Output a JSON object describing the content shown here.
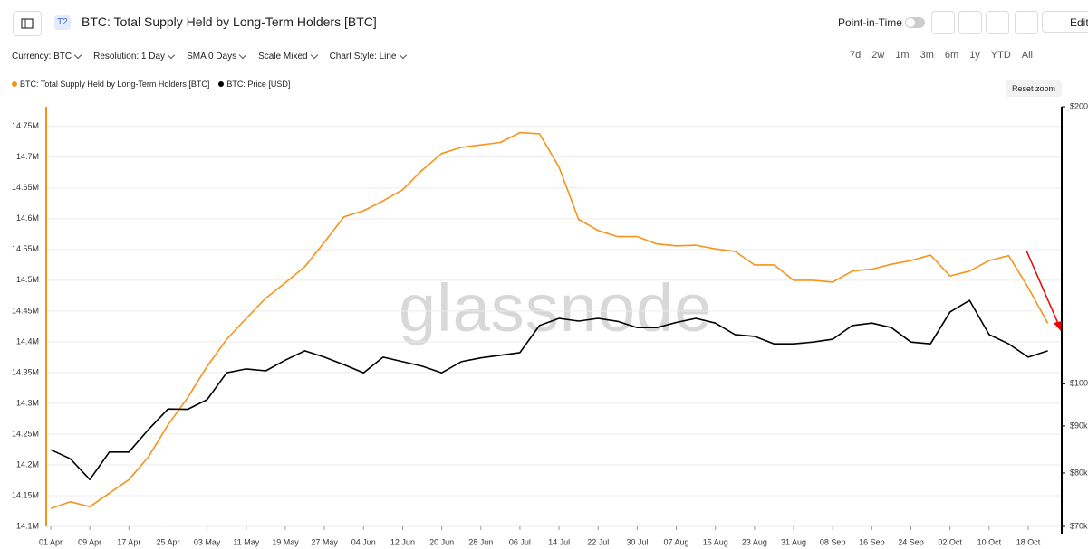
{
  "header": {
    "badge": "T2",
    "title": "BTC: Total Supply Held by Long-Term Holders [BTC]",
    "point_in_time": "Point-in-Time",
    "edit": "Edit"
  },
  "toolbar": {
    "dropdowns": [
      "Currency: BTC",
      "Resolution: 1 Day",
      "SMA 0 Days",
      "Scale Mixed",
      "Chart Style: Line"
    ],
    "ranges": [
      "7d",
      "2w",
      "1m",
      "3m",
      "6m",
      "1y",
      "YTD",
      "All"
    ],
    "reset_zoom": "Reset zoom"
  },
  "watermark": "glassnode",
  "chart_data": {
    "type": "line",
    "categories": [
      "01 Apr",
      null,
      "09 Apr",
      null,
      "17 Apr",
      null,
      "25 Apr",
      null,
      "03 May",
      null,
      "11 May",
      null,
      "19 May",
      null,
      "27 May",
      null,
      "04 Jun",
      null,
      "12 Jun",
      null,
      "20 Jun",
      null,
      "28 Jun",
      null,
      "06 Jul",
      null,
      "14 Jul",
      null,
      "22 Jul",
      null,
      "30 Jul",
      null,
      "07 Aug",
      null,
      "15 Aug",
      null,
      "23 Aug",
      null,
      "31 Aug",
      null,
      "08 Sep",
      null,
      "16 Sep",
      null,
      "24 Sep",
      null,
      "02 Oct",
      null,
      "10 Oct",
      null,
      "18 Oct",
      null
    ],
    "series": [
      {
        "name": "BTC: Total Supply Held by Long-Term Holders [BTC]",
        "color": "#f7931a",
        "axis": "y",
        "values": [
          14129000,
          14140000,
          14132000,
          14154000,
          14176000,
          14213000,
          14265000,
          14309000,
          14360000,
          14404000,
          14438000,
          14471000,
          14496000,
          14522000,
          14562000,
          14603000,
          14613000,
          14629000,
          14647000,
          14679000,
          14706000,
          14716000,
          14720000,
          14724000,
          14740000,
          14738000,
          14684000,
          14599000,
          14581000,
          14571000,
          14571000,
          14559000,
          14556000,
          14557000,
          14551000,
          14547000,
          14525000,
          14525000,
          14500000,
          14500000,
          14497000,
          14515000,
          14518000,
          14526000,
          14532000,
          14541000,
          14507000,
          14515000,
          14532000,
          14540000,
          14488000,
          14430000
        ]
      },
      {
        "name": "BTC: Price [USD]",
        "color": "#000000",
        "axis": "y2",
        "values": [
          84800,
          82900,
          78700,
          84300,
          84300,
          89200,
          93900,
          93800,
          96100,
          102800,
          103800,
          103300,
          106100,
          108600,
          106900,
          104900,
          102800,
          106900,
          105700,
          104500,
          102800,
          105700,
          106700,
          107400,
          108100,
          115700,
          117800,
          117000,
          117800,
          116900,
          115100,
          115100,
          116600,
          117800,
          116400,
          113100,
          112600,
          110500,
          110500,
          111000,
          111800,
          115700,
          116400,
          115100,
          111000,
          110500,
          119700,
          123200,
          113100,
          110500,
          106900,
          108600
        ]
      }
    ],
    "ylim": [
      14100000,
      14782000
    ],
    "yticks": [
      {
        "value": 14100000,
        "label": "14.1M"
      },
      {
        "value": 14150000,
        "label": "14.15M"
      },
      {
        "value": 14200000,
        "label": "14.2M"
      },
      {
        "value": 14250000,
        "label": "14.25M"
      },
      {
        "value": 14300000,
        "label": "14.3M"
      },
      {
        "value": 14350000,
        "label": "14.35M"
      },
      {
        "value": 14400000,
        "label": "14.4M"
      },
      {
        "value": 14450000,
        "label": "14.45M"
      },
      {
        "value": 14500000,
        "label": "14.5M"
      },
      {
        "value": 14550000,
        "label": "14.55M"
      },
      {
        "value": 14600000,
        "label": "14.6M"
      },
      {
        "value": 14650000,
        "label": "14.65M"
      },
      {
        "value": 14700000,
        "label": "14.7M"
      },
      {
        "value": 14750000,
        "label": "14.75M"
      }
    ],
    "y2lim": [
      70000,
      200000
    ],
    "y2log": true,
    "y2ticks": [
      {
        "value": 70000,
        "label": "$70k"
      },
      {
        "value": 80000,
        "label": "$80k"
      },
      {
        "value": 90000,
        "label": "$90k"
      },
      {
        "value": 100000,
        "label": "$100k"
      },
      {
        "value": 200000,
        "label": "$200k"
      }
    ],
    "grid": true,
    "legend": "top-left"
  }
}
